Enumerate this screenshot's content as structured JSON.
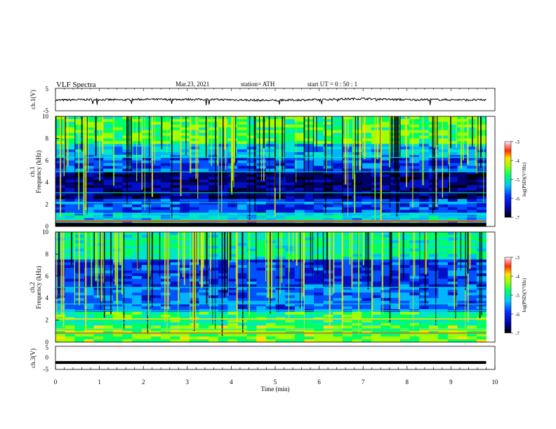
{
  "header": {
    "title": "VLF  Spectra",
    "date": "Mar.23, 2021",
    "station": "station= ATH",
    "start": "start  UT  =   0  : 50 : 1"
  },
  "chart_data": [
    {
      "type": "line",
      "panel": "ch1-waveform",
      "ylabel": "ch.1(V)",
      "ylim": [
        -5,
        5
      ],
      "yticks": [
        "5",
        "-5"
      ],
      "xlim": [
        0,
        10
      ],
      "series": [
        {
          "x": [
            0.0,
            0.5,
            1.0,
            1.5,
            2.0,
            2.5,
            3.0,
            3.5,
            4.0,
            4.5,
            5.0,
            5.5,
            6.0,
            6.5,
            7.0,
            7.5,
            8.0,
            8.5,
            9.0,
            9.5,
            9.8
          ],
          "y": [
            -0.3,
            -0.1,
            0.0,
            -0.2,
            0.1,
            0.0,
            0.1,
            0.0,
            -0.1,
            -0.3,
            -0.4,
            -0.2,
            -0.1,
            0.2,
            0.4,
            0.1,
            -0.1,
            0.0,
            -0.1,
            -0.2,
            -0.2
          ]
        }
      ]
    },
    {
      "type": "heatmap",
      "panel": "ch1-spectrogram",
      "ylabel": "Frequency (kHz)",
      "channel_label": "ch.1",
      "ylim": [
        0,
        10
      ],
      "yticks": [
        "0",
        "2",
        "4",
        "6",
        "8",
        "10"
      ],
      "xlim": [
        0,
        10
      ],
      "colorbar": {
        "label": "log(PSD)(V²/Hz)",
        "range": [
          -7,
          -3
        ],
        "ticks": [
          "-3",
          "-4",
          "-5",
          "-6",
          "-7"
        ]
      }
    },
    {
      "type": "heatmap",
      "panel": "ch2-spectrogram",
      "ylabel": "Frequency (kHz)",
      "channel_label": "ch.2",
      "ylim": [
        0,
        10
      ],
      "yticks": [
        "0",
        "2",
        "4",
        "6",
        "8",
        "10"
      ],
      "xlim": [
        0,
        10
      ],
      "colorbar": {
        "label": "log(PSD)(V²/Hz)",
        "range": [
          -7,
          -3
        ],
        "ticks": [
          "-3",
          "-4",
          "-5",
          "-6",
          "-7"
        ]
      }
    },
    {
      "type": "line",
      "panel": "ch3-waveform",
      "ylabel": "ch.3(V)",
      "ylim": [
        -5,
        5
      ],
      "yticks": [
        "5",
        "0",
        "-5"
      ],
      "xlim": [
        0,
        10
      ],
      "xlabel": "Time  (min)",
      "xticks": [
        "0",
        "1",
        "2",
        "3",
        "4",
        "5",
        "6",
        "7",
        "8",
        "9",
        "10"
      ],
      "series": [
        {
          "x": [
            0.0,
            9.8
          ],
          "y": [
            -2.0,
            -2.0
          ]
        }
      ]
    }
  ]
}
